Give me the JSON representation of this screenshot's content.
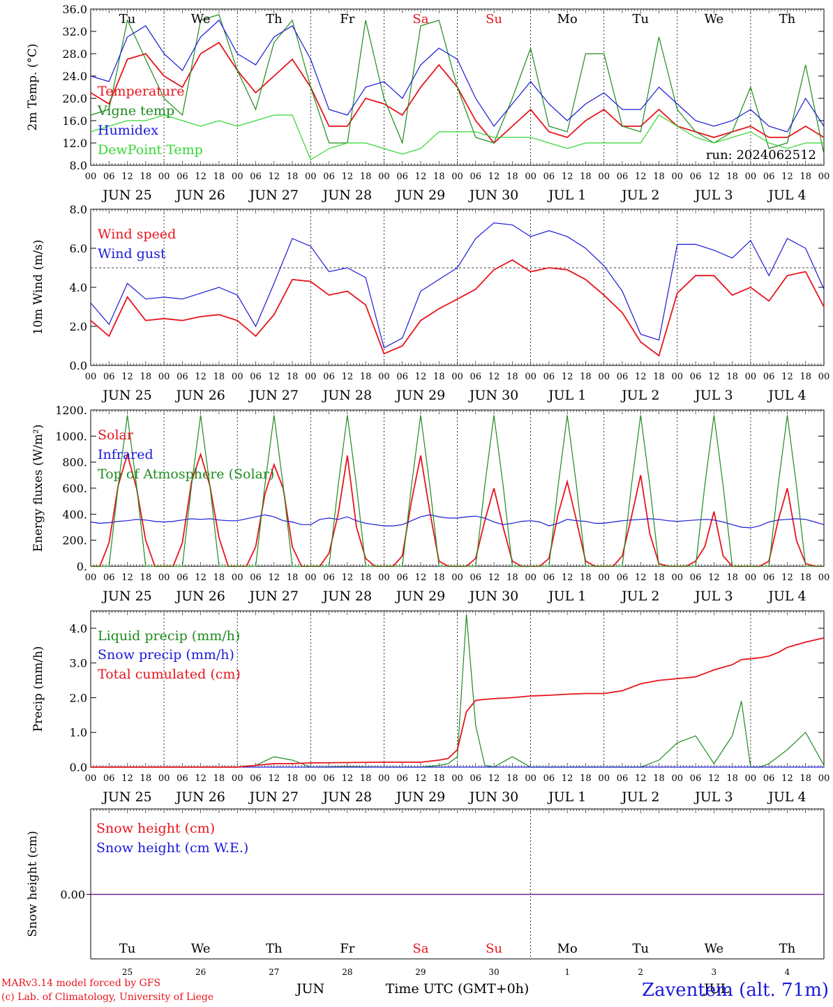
{
  "colors": {
    "red": "#e8141c",
    "blue": "#1a1ad8",
    "green": "#1f8a1f",
    "lightgreen": "#34d834",
    "purple": "#7a1fa0",
    "axis": "#000000"
  },
  "days": [
    "Tu",
    "We",
    "Th",
    "Fr",
    "Sa",
    "Su",
    "Mo",
    "Tu",
    "We",
    "Th"
  ],
  "weekend_days": [
    4,
    5
  ],
  "dates": [
    "JUN 25",
    "JUN 26",
    "JUN 27",
    "JUN 28",
    "JUN 29",
    "JUN 30",
    "JUL  1",
    "JUL  2",
    "JUL  3",
    "JUL  4"
  ],
  "hour_ticks": [
    "00",
    "06",
    "12",
    "18"
  ],
  "hour_end": "00",
  "day_numbers": [
    "25",
    "26",
    "27",
    "28",
    "29",
    "30",
    "1",
    "2",
    "3",
    "4"
  ],
  "bottom_month_left": "JUN",
  "bottom_month_right": "JUL",
  "xlabel": "Time UTC (GMT+0h)",
  "credits": [
    "MARv3.14 model forced by GFS",
    "(c) Lab. of Climatology, University of Liege"
  ],
  "station": "Zaventem (alt. 71m)",
  "run_label": "run: 2024062512",
  "chart_data": [
    {
      "type": "line",
      "ylabel": "2m Temp. (°C)",
      "ylim": [
        8,
        36
      ],
      "yticks": [
        "8.0",
        "12.0",
        "16.0",
        "20.0",
        "24.0",
        "28.0",
        "32.0",
        "36.0"
      ],
      "x_units": "hours since JUN 25 00 UTC",
      "x": [
        0,
        6,
        12,
        18,
        24,
        30,
        36,
        42,
        48,
        54,
        60,
        66,
        72,
        78,
        84,
        90,
        96,
        102,
        108,
        114,
        120,
        126,
        132,
        138,
        144,
        150,
        156,
        162,
        168,
        174,
        180,
        186,
        192,
        198,
        204,
        210,
        216,
        222,
        228,
        234,
        240
      ],
      "series": [
        {
          "name": "Temperature",
          "color": "red",
          "values": [
            21,
            19,
            27,
            28,
            24,
            22,
            28,
            30,
            25,
            21,
            24,
            27,
            22,
            15,
            15,
            20,
            19,
            17,
            22,
            26,
            22,
            16,
            12,
            15,
            18,
            14,
            13,
            16,
            18,
            15,
            15,
            18,
            15,
            14,
            13,
            14,
            15,
            13,
            13,
            15,
            13
          ]
        },
        {
          "name": "Vigne temp",
          "color": "green",
          "values": [
            17,
            18,
            34,
            27,
            20,
            17,
            34,
            35,
            25,
            18,
            30,
            34,
            22,
            12,
            12,
            34,
            20,
            12,
            33,
            34,
            22,
            13,
            12,
            20,
            29,
            15,
            14,
            28,
            28,
            15,
            14,
            31,
            18,
            14,
            12,
            14,
            22,
            11,
            12,
            26,
            10
          ]
        },
        {
          "name": "Humidex",
          "color": "blue",
          "values": [
            24,
            23,
            31,
            33,
            28,
            25,
            31,
            34,
            28,
            26,
            31,
            33,
            27,
            18,
            17,
            22,
            23,
            20,
            26,
            29,
            27,
            20,
            15,
            19,
            23,
            19,
            16,
            19,
            21,
            18,
            18,
            22,
            19,
            16,
            15,
            16,
            18,
            15,
            14,
            20,
            15
          ]
        },
        {
          "name": "DewPoint Temp",
          "color": "lightgreen",
          "values": [
            14,
            15,
            16,
            16,
            17,
            16,
            15,
            16,
            15,
            16,
            17,
            17,
            9,
            11,
            12,
            12,
            11,
            10,
            11,
            14,
            14,
            14,
            13,
            13,
            13,
            12,
            11,
            12,
            12,
            12,
            12,
            17,
            15,
            13,
            12,
            13,
            14,
            12,
            11,
            12,
            12
          ]
        }
      ]
    },
    {
      "type": "line",
      "ylabel": "10m Wind (m/s)",
      "ylim": [
        0,
        8
      ],
      "reference_line": 5,
      "yticks": [
        "0.0",
        "2.0",
        "4.0",
        "6.0",
        "8.0"
      ],
      "x": [
        0,
        6,
        12,
        18,
        24,
        30,
        36,
        42,
        48,
        54,
        60,
        66,
        72,
        78,
        84,
        90,
        96,
        102,
        108,
        114,
        120,
        126,
        132,
        138,
        144,
        150,
        156,
        162,
        168,
        174,
        180,
        186,
        192,
        198,
        204,
        210,
        216,
        222,
        228,
        234,
        240
      ],
      "series": [
        {
          "name": "Wind speed",
          "color": "red",
          "values": [
            2.3,
            1.5,
            3.5,
            2.3,
            2.4,
            2.3,
            2.5,
            2.6,
            2.3,
            1.5,
            2.6,
            4.4,
            4.3,
            3.6,
            3.8,
            3.1,
            0.6,
            1.0,
            2.3,
            2.9,
            3.4,
            3.9,
            4.9,
            5.4,
            4.8,
            5.0,
            4.9,
            4.4,
            3.6,
            2.7,
            1.2,
            0.5,
            3.7,
            4.6,
            4.6,
            3.6,
            4.0,
            3.3,
            4.6,
            4.8,
            3.0
          ]
        },
        {
          "name": "Wind gust",
          "color": "blue",
          "values": [
            3.2,
            2.1,
            4.2,
            3.4,
            3.5,
            3.4,
            3.7,
            4.0,
            3.6,
            2.0,
            4.2,
            6.5,
            6.1,
            4.8,
            5.0,
            4.5,
            0.9,
            1.4,
            3.8,
            4.4,
            5.0,
            6.5,
            7.3,
            7.2,
            6.6,
            6.9,
            6.6,
            6.0,
            5.1,
            3.8,
            1.6,
            1.3,
            6.2,
            6.2,
            5.9,
            5.5,
            6.4,
            4.6,
            6.5,
            6.0,
            3.9
          ]
        }
      ]
    },
    {
      "type": "line",
      "ylabel": "Energy fluxes (W/m²)",
      "ylim": [
        0,
        1200
      ],
      "yticks": [
        "0.",
        "200.",
        "400.",
        "600.",
        "800.",
        "1000.",
        "1200."
      ],
      "x": [
        0,
        3,
        6,
        9,
        12,
        15,
        18,
        21,
        24,
        27,
        30,
        33,
        36,
        39,
        42,
        45,
        48,
        51,
        54,
        57,
        60,
        63,
        66,
        69,
        72,
        75,
        78,
        81,
        84,
        87,
        90,
        93,
        96,
        99,
        102,
        105,
        108,
        111,
        114,
        117,
        120,
        123,
        126,
        129,
        132,
        135,
        138,
        141,
        144,
        147,
        150,
        153,
        156,
        159,
        162,
        165,
        168,
        171,
        174,
        177,
        180,
        183,
        186,
        189,
        192,
        195,
        198,
        201,
        204,
        207,
        210,
        213,
        216,
        219,
        222,
        225,
        228,
        231,
        234,
        237,
        240
      ],
      "series": [
        {
          "name": "Solar",
          "color": "red",
          "values": [
            0,
            0,
            180,
            620,
            860,
            600,
            200,
            0,
            0,
            0,
            180,
            650,
            860,
            620,
            220,
            0,
            0,
            0,
            150,
            550,
            780,
            600,
            150,
            0,
            0,
            0,
            100,
            400,
            850,
            300,
            60,
            0,
            0,
            0,
            80,
            500,
            850,
            420,
            40,
            0,
            0,
            0,
            60,
            350,
            600,
            300,
            40,
            0,
            0,
            0,
            60,
            400,
            650,
            350,
            40,
            0,
            0,
            0,
            80,
            380,
            700,
            250,
            20,
            0,
            0,
            0,
            40,
            150,
            420,
            80,
            0,
            0,
            0,
            0,
            40,
            350,
            600,
            200,
            20,
            0,
            0
          ]
        },
        {
          "name": "Infrared",
          "color": "blue",
          "values": [
            340,
            330,
            335,
            345,
            350,
            360,
            355,
            345,
            340,
            345,
            355,
            365,
            360,
            365,
            355,
            350,
            350,
            365,
            380,
            395,
            380,
            350,
            340,
            320,
            320,
            360,
            370,
            360,
            380,
            350,
            330,
            320,
            310,
            310,
            320,
            350,
            380,
            395,
            380,
            370,
            370,
            380,
            385,
            370,
            340,
            320,
            330,
            345,
            350,
            340,
            310,
            330,
            360,
            350,
            345,
            330,
            330,
            340,
            350,
            355,
            360,
            365,
            360,
            350,
            345,
            350,
            355,
            360,
            355,
            340,
            320,
            300,
            295,
            310,
            340,
            355,
            360,
            365,
            360,
            340,
            320
          ]
        },
        {
          "name": "Top of Atmosphere (Solar)",
          "color": "green",
          "values": [
            0,
            0,
            0,
            620,
            1160,
            620,
            0,
            0,
            0,
            0,
            0,
            620,
            1160,
            620,
            0,
            0,
            0,
            0,
            0,
            620,
            1160,
            620,
            0,
            0,
            0,
            0,
            0,
            620,
            1160,
            620,
            0,
            0,
            0,
            0,
            0,
            620,
            1160,
            620,
            0,
            0,
            0,
            0,
            0,
            620,
            1160,
            620,
            0,
            0,
            0,
            0,
            0,
            620,
            1160,
            620,
            0,
            0,
            0,
            0,
            0,
            620,
            1160,
            620,
            0,
            0,
            0,
            0,
            0,
            620,
            1160,
            620,
            0,
            0,
            0,
            0,
            0,
            620,
            1160,
            620,
            0,
            0,
            0
          ]
        }
      ]
    },
    {
      "type": "line",
      "ylabel": "Precip (mm/h)",
      "ylim": [
        0,
        4.5
      ],
      "yticks": [
        "0.0",
        "1.0",
        "2.0",
        "3.0",
        "4.0"
      ],
      "x": [
        0,
        24,
        48,
        54,
        60,
        66,
        72,
        84,
        96,
        108,
        114,
        117,
        120,
        123,
        126,
        129,
        132,
        138,
        144,
        150,
        156,
        162,
        168,
        174,
        180,
        186,
        192,
        198,
        204,
        210,
        213,
        216,
        219,
        222,
        225,
        228,
        234,
        240
      ],
      "series": [
        {
          "name": "Liquid precip (mm/h)",
          "color": "green",
          "values": [
            0,
            0,
            0,
            0.05,
            0.3,
            0.2,
            0,
            0.02,
            0,
            0,
            0.05,
            0.1,
            0.3,
            4.4,
            1.2,
            0.05,
            0,
            0.3,
            0,
            0,
            0,
            0,
            0,
            0,
            0,
            0.2,
            0.7,
            0.9,
            0.1,
            0.9,
            1.9,
            0,
            0,
            0.1,
            0.3,
            0.5,
            1.0,
            0.05
          ]
        },
        {
          "name": "Snow precip (mm/h)",
          "color": "blue",
          "values": [
            0,
            0,
            0,
            0,
            0,
            0,
            0,
            0,
            0,
            0,
            0,
            0,
            0,
            0,
            0,
            0,
            0,
            0,
            0,
            0,
            0,
            0,
            0,
            0,
            0,
            0,
            0,
            0,
            0,
            0,
            0,
            0,
            0,
            0,
            0,
            0,
            0,
            0
          ]
        },
        {
          "name": "Total cumulated (cm)",
          "color": "red",
          "values": [
            0,
            0,
            0,
            0.05,
            0.1,
            0.1,
            0.12,
            0.13,
            0.14,
            0.14,
            0.2,
            0.25,
            0.5,
            1.6,
            1.92,
            1.95,
            1.97,
            2.0,
            2.05,
            2.07,
            2.1,
            2.12,
            2.12,
            2.2,
            2.4,
            2.5,
            2.55,
            2.6,
            2.8,
            2.95,
            3.1,
            3.12,
            3.15,
            3.2,
            3.3,
            3.45,
            3.6,
            3.72
          ]
        }
      ]
    },
    {
      "type": "line",
      "ylabel": "Snow height (cm)",
      "yticks": [
        "0.00"
      ],
      "series": [
        {
          "name": "Snow height (cm)",
          "color": "red",
          "values": [
            0,
            0
          ]
        },
        {
          "name": "Snow height (cm W.E.)",
          "color": "blue",
          "values": [
            0,
            0
          ]
        }
      ]
    }
  ]
}
